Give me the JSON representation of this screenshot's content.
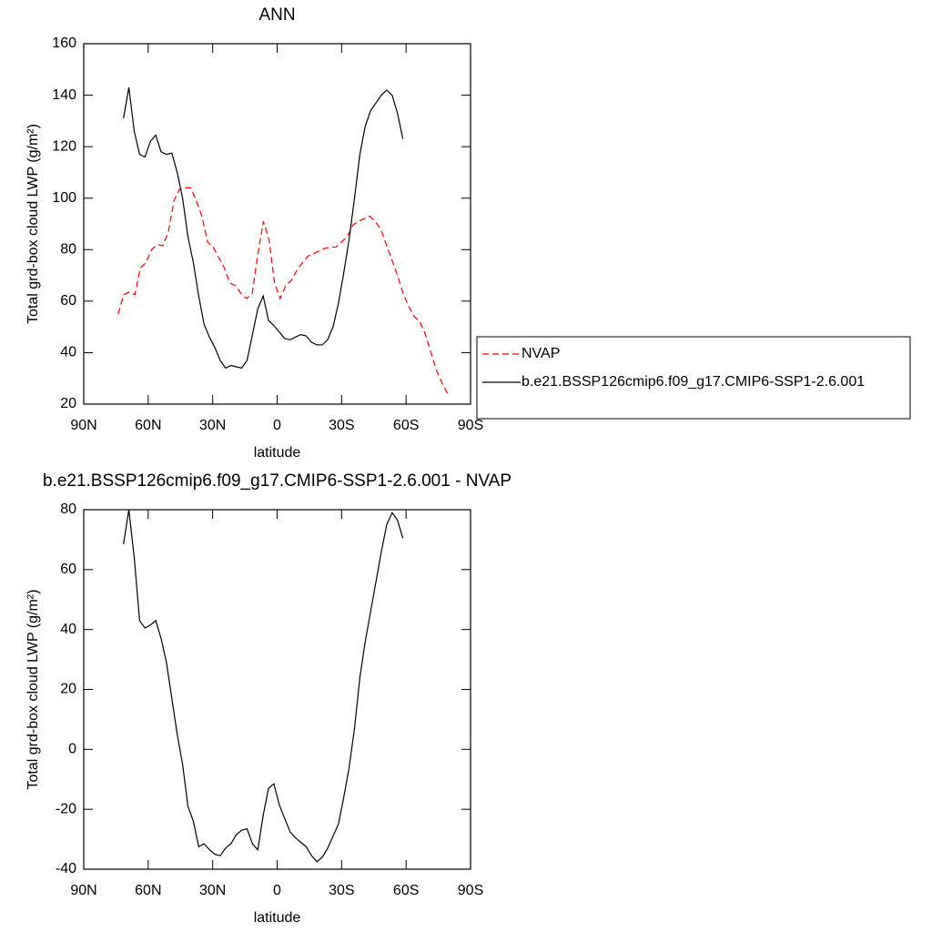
{
  "chart_data": [
    {
      "type": "line",
      "title": "ANN",
      "x_label": "latitude",
      "y_label": "Total grd-box cloud LWP (g/m²)",
      "xlim": [
        90,
        -90
      ],
      "xticks": [
        {
          "value": 90,
          "label": "90N"
        },
        {
          "value": 60,
          "label": "60N"
        },
        {
          "value": 30,
          "label": "30N"
        },
        0,
        {
          "value": -30,
          "label": "30S"
        },
        {
          "value": -60,
          "label": "60S"
        },
        {
          "value": -90,
          "label": "90S"
        }
      ],
      "ylim": [
        20,
        160
      ],
      "yticks": [
        20,
        40,
        60,
        80,
        100,
        120,
        140,
        160
      ],
      "legend": "right",
      "series": [
        {
          "name": "NVAP",
          "color": "#ff0000",
          "dashed": true,
          "x": [
            74.0,
            71.4,
            68.8,
            66.2,
            63.6,
            61.0,
            58.4,
            55.8,
            53.2,
            50.6,
            48.0,
            45.4,
            42.8,
            40.2,
            37.6,
            35.0,
            32.4,
            29.8,
            27.2,
            24.6,
            22.0,
            19.4,
            16.8,
            14.2,
            11.6,
            9.0,
            6.4,
            3.8,
            1.2,
            -1.4,
            -4.0,
            -6.6,
            -9.2,
            -11.8,
            -14.4,
            -17.0,
            -19.6,
            -22.2,
            -24.8,
            -27.4,
            -30.0,
            -32.6,
            -35.2,
            -37.8,
            -40.4,
            -43.0,
            -45.6,
            -48.2,
            -50.8,
            -53.4,
            -56.0,
            -58.6,
            -61.2,
            -63.8,
            -66.4,
            -69.0,
            -71.6,
            -74.2,
            -76.8,
            -79.4
          ],
          "values": [
            55,
            62.5,
            63.5,
            62.5,
            73,
            75,
            80,
            82,
            81.5,
            87,
            99,
            103.5,
            104,
            104,
            99,
            93,
            83,
            81,
            77,
            73,
            67,
            66,
            63,
            61,
            63,
            78,
            91,
            84,
            67,
            61,
            66,
            68,
            72,
            75,
            77.5,
            78.5,
            79.5,
            80.5,
            81,
            81,
            83,
            85,
            89.5,
            91,
            92,
            93,
            91,
            88,
            82,
            76,
            70,
            63,
            58,
            54,
            52,
            47,
            40,
            33,
            28,
            24
          ]
        },
        {
          "name": "b.e21.BSSP126cmip6.f09_g17.CMIP6-SSP1-2.6.001",
          "color": "#000000",
          "dashed": false,
          "x": [
            71.5,
            69,
            66.5,
            64,
            61.5,
            59,
            56.5,
            54,
            51.5,
            49,
            46.5,
            44,
            41.5,
            39,
            36.5,
            34,
            31.5,
            29,
            26.5,
            24,
            21.5,
            19,
            16.5,
            14,
            11.5,
            9,
            6.5,
            4,
            1.5,
            -1,
            -3.5,
            -6,
            -8.5,
            -11,
            -13.5,
            -16,
            -18.5,
            -21,
            -23.5,
            -26,
            -28.5,
            -31,
            -33.5,
            -36,
            -38.5,
            -41,
            -43.5,
            -46,
            -48.5,
            -51,
            -53.5,
            -56,
            -58.5
          ],
          "values": [
            131,
            143,
            126,
            117,
            116,
            122,
            124.5,
            118,
            117,
            117.5,
            110,
            100,
            85,
            75,
            62,
            51,
            46,
            42,
            37,
            34,
            35,
            34.5,
            34,
            37,
            47,
            57,
            62,
            52.5,
            50.5,
            48,
            45.5,
            45,
            46,
            47,
            46.5,
            44,
            43,
            43,
            45,
            50,
            59,
            71,
            84,
            100,
            117,
            128,
            134,
            137,
            140,
            142,
            140,
            133,
            123
          ]
        }
      ]
    },
    {
      "type": "line",
      "title": "b.e21.BSSP126cmip6.f09_g17.CMIP6-SSP1-2.6.001 - NVAP",
      "x_label": "latitude",
      "y_label": "Total grd-box cloud LWP (g/m²)",
      "xlim": [
        90,
        -90
      ],
      "xticks": [
        {
          "value": 90,
          "label": "90N"
        },
        {
          "value": 60,
          "label": "60N"
        },
        {
          "value": 30,
          "label": "30N"
        },
        0,
        {
          "value": -30,
          "label": "30S"
        },
        {
          "value": -60,
          "label": "60S"
        },
        {
          "value": -90,
          "label": "90S"
        }
      ],
      "ylim": [
        -40,
        80
      ],
      "yticks": [
        -40,
        -20,
        0,
        20,
        40,
        60,
        80
      ],
      "series": [
        {
          "color": "#000000",
          "dashed": false,
          "x": [
            71.5,
            69,
            66.5,
            64,
            61.5,
            59,
            56.5,
            54,
            51.5,
            49,
            46.5,
            44,
            41.5,
            39,
            36.5,
            34,
            31.5,
            29,
            26.5,
            24,
            21.5,
            19,
            16.5,
            14,
            11.5,
            9,
            6.5,
            4,
            1.5,
            -1,
            -3.5,
            -6,
            -8.5,
            -11,
            -13.5,
            -16,
            -18.5,
            -21,
            -23.5,
            -26,
            -28.5,
            -31,
            -33.5,
            -36,
            -38.5,
            -41,
            -43.5,
            -46,
            -48.5,
            -51,
            -53.5,
            -56,
            -58.5
          ],
          "values": [
            68.5,
            80,
            64,
            43,
            40.5,
            41.5,
            43,
            37,
            29,
            17,
            5,
            -5,
            -19,
            -24,
            -32.5,
            -31.5,
            -33.5,
            -35,
            -35.5,
            -33,
            -31.5,
            -28.5,
            -27,
            -26.5,
            -31.5,
            -33.5,
            -22,
            -13,
            -11.5,
            -18.5,
            -23,
            -27.5,
            -29.5,
            -31,
            -32.5,
            -35.5,
            -37.5,
            -36,
            -33,
            -29,
            -25,
            -16,
            -6,
            7,
            24,
            36,
            46,
            56,
            66,
            75,
            79,
            76.5,
            70.5
          ]
        }
      ]
    }
  ]
}
